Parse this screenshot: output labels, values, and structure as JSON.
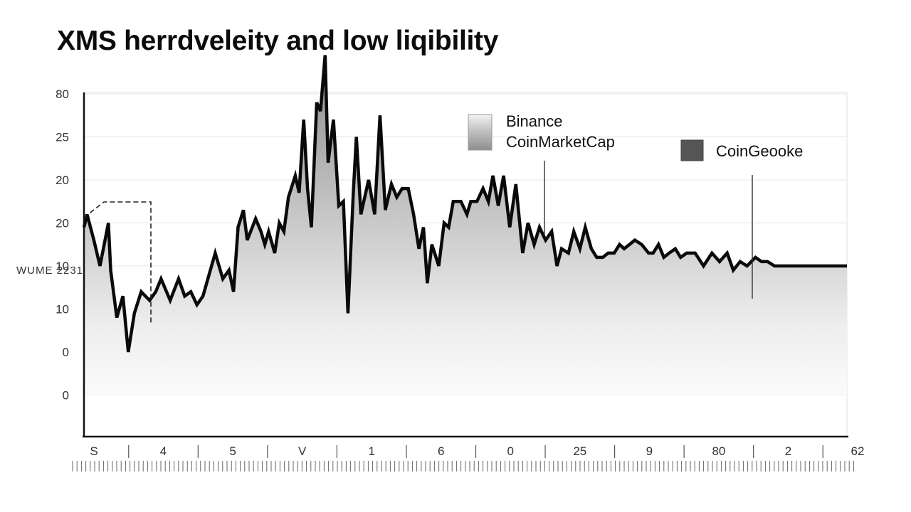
{
  "chart_data": {
    "type": "area",
    "title": "XMS herrdveleity and low liqibility",
    "ylabel": "WUME 2231",
    "xlabel": "",
    "ylim_ticks": [
      "80",
      "25",
      "20",
      "20",
      "10",
      "10",
      "0",
      "0"
    ],
    "x_tick_labels": [
      "S",
      "4",
      "5",
      "V",
      "1",
      "6",
      "0",
      "25",
      "9",
      "80",
      "2",
      "62"
    ],
    "grid": true,
    "legend_placement": "top-right",
    "legend": [
      {
        "name": "Binance",
        "color": "#e4e4e4"
      },
      {
        "name": "CoinMarketCap",
        "color": "#9c9c9c"
      },
      {
        "name": "CoinGeooke",
        "color": "#555555"
      }
    ],
    "series": [
      {
        "name": "",
        "note_units": "y values in axis-row units where 0 = bottom tick row, 7 = top tick row",
        "x": [
          0,
          0.4,
          1.3,
          2.1,
          3.2,
          3.5,
          4.3,
          5.1,
          5.8,
          6.6,
          7.5,
          8.6,
          9.4,
          10.1,
          11.3,
          12.4,
          13.2,
          14.0,
          14.8,
          15.6,
          16.4,
          17.2,
          18.2,
          19.0,
          19.6,
          20.2,
          20.9,
          21.4,
          22.5,
          23.2,
          23.7,
          24.2,
          25.0,
          25.6,
          26.2,
          26.8,
          27.7,
          28.2,
          28.8,
          29.3,
          29.8,
          30.5,
          31.0,
          31.6,
          32.0,
          32.7,
          33.4,
          34.0,
          34.6,
          35.3,
          35.7,
          36.3,
          37.3,
          38.1,
          38.8,
          39.5,
          40.3,
          41.0,
          41.7,
          42.5,
          43.2,
          43.9,
          44.5,
          45.0,
          45.6,
          46.5,
          47.2,
          47.8,
          48.4,
          49.4,
          50.2,
          50.7,
          51.5,
          52.3,
          53.0,
          53.6,
          54.3,
          55.0,
          55.8,
          56.6,
          57.5,
          58.2,
          59.0,
          59.7,
          60.5,
          61.3,
          62.0,
          62.6,
          63.5,
          64.2,
          65.0,
          65.7,
          66.5,
          67.2,
          68.0,
          68.7,
          69.5,
          70.2,
          70.8,
          71.5,
          72.2,
          73.1,
          74.0,
          74.6,
          75.3,
          76.0,
          76.7,
          77.5,
          78.2,
          79.0,
          80.1,
          81.2,
          82.3,
          83.3,
          84.3,
          85.1,
          86.0,
          86.9,
          88.0,
          88.8,
          89.6,
          90.5,
          91.3,
          92.1,
          92.9,
          93.7,
          94.5,
          96.0,
          98.0,
          100
        ],
        "y": [
          3.9,
          4.2,
          3.6,
          3.0,
          4.0,
          2.9,
          1.8,
          2.3,
          1.0,
          1.9,
          2.4,
          2.2,
          2.4,
          2.7,
          2.2,
          2.7,
          2.3,
          2.4,
          2.1,
          2.3,
          2.8,
          3.3,
          2.7,
          2.9,
          2.4,
          3.9,
          4.3,
          3.6,
          4.1,
          3.8,
          3.5,
          3.8,
          3.3,
          4.0,
          3.8,
          4.6,
          5.1,
          4.7,
          6.4,
          4.8,
          3.9,
          6.8,
          6.6,
          7.9,
          5.4,
          6.4,
          4.4,
          4.5,
          1.9,
          4.7,
          6.0,
          4.2,
          5.0,
          4.2,
          6.5,
          4.3,
          4.9,
          4.6,
          4.8,
          4.8,
          4.2,
          3.4,
          3.9,
          2.6,
          3.5,
          3.0,
          4.0,
          3.9,
          4.5,
          4.5,
          4.2,
          4.5,
          4.5,
          4.8,
          4.5,
          5.1,
          4.4,
          5.1,
          3.9,
          4.9,
          3.3,
          4.0,
          3.5,
          3.9,
          3.6,
          3.8,
          3.0,
          3.4,
          3.3,
          3.8,
          3.4,
          3.9,
          3.4,
          3.2,
          3.2,
          3.3,
          3.3,
          3.5,
          3.4,
          3.5,
          3.6,
          3.5,
          3.3,
          3.3,
          3.5,
          3.2,
          3.3,
          3.4,
          3.2,
          3.3,
          3.3,
          3.0,
          3.3,
          3.1,
          3.3,
          2.9,
          3.1,
          3.0,
          3.2,
          3.1,
          3.1,
          3.0,
          3.0,
          3.0,
          3.0,
          3.0,
          3.0,
          3.0,
          3.0,
          3.0
        ]
      }
    ]
  }
}
